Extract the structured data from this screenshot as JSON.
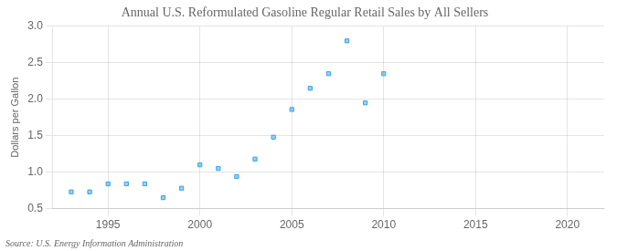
{
  "chart_data": {
    "type": "scatter",
    "title": "Annual U.S. Reformulated Gasoline Regular Retail Sales by All Sellers",
    "y_label": "Dollars per Gallon",
    "source": "Source: U.S. Energy Information Administration",
    "x": [
      1993,
      1994,
      1995,
      1996,
      1997,
      1998,
      1999,
      2000,
      2001,
      2002,
      2003,
      2004,
      2005,
      2006,
      2007,
      2008,
      2009,
      2010
    ],
    "values": [
      0.73,
      0.73,
      0.84,
      0.84,
      0.84,
      0.65,
      0.78,
      1.1,
      1.05,
      0.94,
      1.18,
      1.48,
      1.86,
      2.15,
      2.35,
      2.8,
      1.95,
      2.35
    ],
    "marker": "square",
    "xlim": [
      1992,
      2022
    ],
    "xticks": [
      1995,
      2000,
      2005,
      2010,
      2015,
      2020
    ],
    "ylim": [
      0.5,
      3.0
    ],
    "yticks": [
      0.5,
      {
        "value": 1,
        "label": "1.0"
      },
      1.5,
      {
        "value": 2,
        "label": "2.0"
      },
      2.5,
      {
        "value": 3,
        "label": "3.0"
      }
    ],
    "grid": true
  }
}
